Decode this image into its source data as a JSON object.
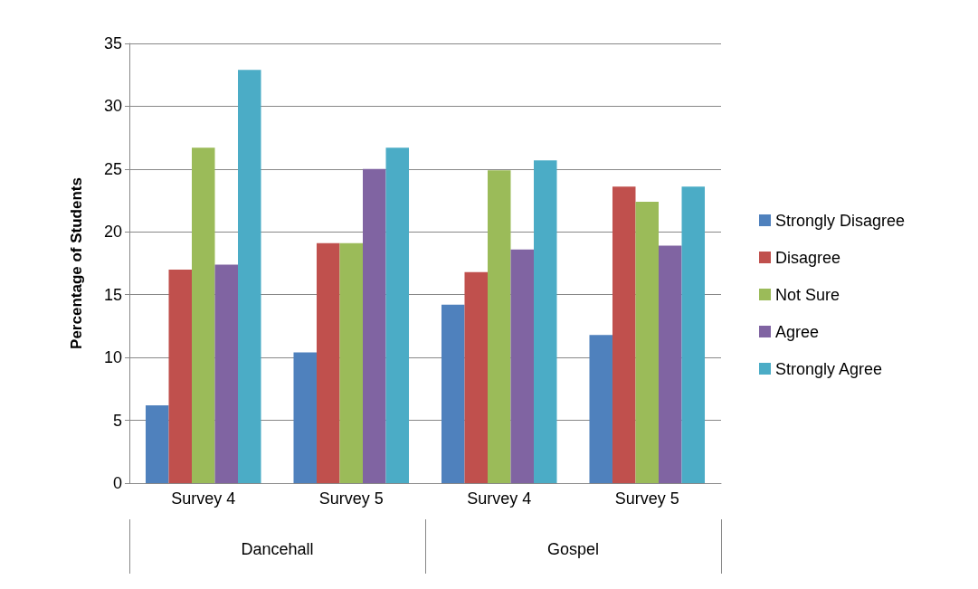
{
  "chart_data": {
    "type": "bar",
    "ylabel": "Percentage of Students",
    "categories": [
      "Survey 4",
      "Survey 5",
      "Survey 4",
      "Survey 5"
    ],
    "annotations": [
      "Dancehall",
      "Gospel"
    ],
    "series": [
      {
        "name": "Strongly Disagree",
        "color": "#4f81bd",
        "values": [
          6.2,
          10.4,
          14.2,
          11.8
        ]
      },
      {
        "name": "Disagree",
        "color": "#c0504d",
        "values": [
          17.0,
          19.1,
          16.8,
          23.6
        ]
      },
      {
        "name": "Not Sure",
        "color": "#9bbb59",
        "values": [
          26.7,
          19.1,
          24.9,
          22.4
        ]
      },
      {
        "name": "Agree",
        "color": "#8064a2",
        "values": [
          17.4,
          25.0,
          18.6,
          18.9
        ]
      },
      {
        "name": "Strongly Agree",
        "color": "#4bacc6",
        "values": [
          32.9,
          26.7,
          25.7,
          23.6
        ]
      }
    ],
    "ylim": [
      0,
      35
    ],
    "yticks": [
      0,
      5,
      10,
      15,
      20,
      25,
      30,
      35
    ],
    "grid": "y",
    "legend": "right"
  }
}
